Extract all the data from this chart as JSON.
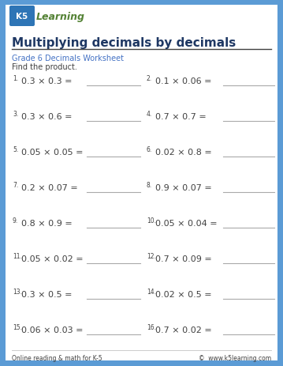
{
  "title": "Multiplying decimals by decimals",
  "subtitle": "Grade 6 Decimals Worksheet",
  "instruction": "Find the product.",
  "background_color": "#5b9bd5",
  "paper_color": "#ffffff",
  "title_color": "#1f3864",
  "subtitle_color": "#4472c4",
  "text_color": "#404040",
  "line_color": "#aaaaaa",
  "footer_left": "Online reading & math for K-5",
  "footer_right": "©  www.k5learning.com",
  "problems": [
    [
      "0.3 × 0.3 =",
      "0.1 × 0.06 ="
    ],
    [
      "0.3 × 0.6 =",
      "0.7 × 0.7 ="
    ],
    [
      "0.05 × 0.05 =",
      "0.02 × 0.8 ="
    ],
    [
      "0.2 × 0.07 =",
      "0.9 × 0.07 ="
    ],
    [
      "0.8 × 0.9 =",
      "0.05 × 0.04 ="
    ],
    [
      "0.05 × 0.02 =",
      "0.7 × 0.09 ="
    ],
    [
      "0.3 × 0.5 =",
      "0.02 × 0.5 ="
    ],
    [
      "0.06 × 0.03 =",
      "0.7 × 0.02 ="
    ]
  ],
  "problem_numbers": [
    [
      "1.",
      "2."
    ],
    [
      "3.",
      "4."
    ],
    [
      "5.",
      "6."
    ],
    [
      "7.",
      "8."
    ],
    [
      "9.",
      "10."
    ],
    [
      "11.",
      "12."
    ],
    [
      "13.",
      "14."
    ],
    [
      "15.",
      "16."
    ]
  ]
}
